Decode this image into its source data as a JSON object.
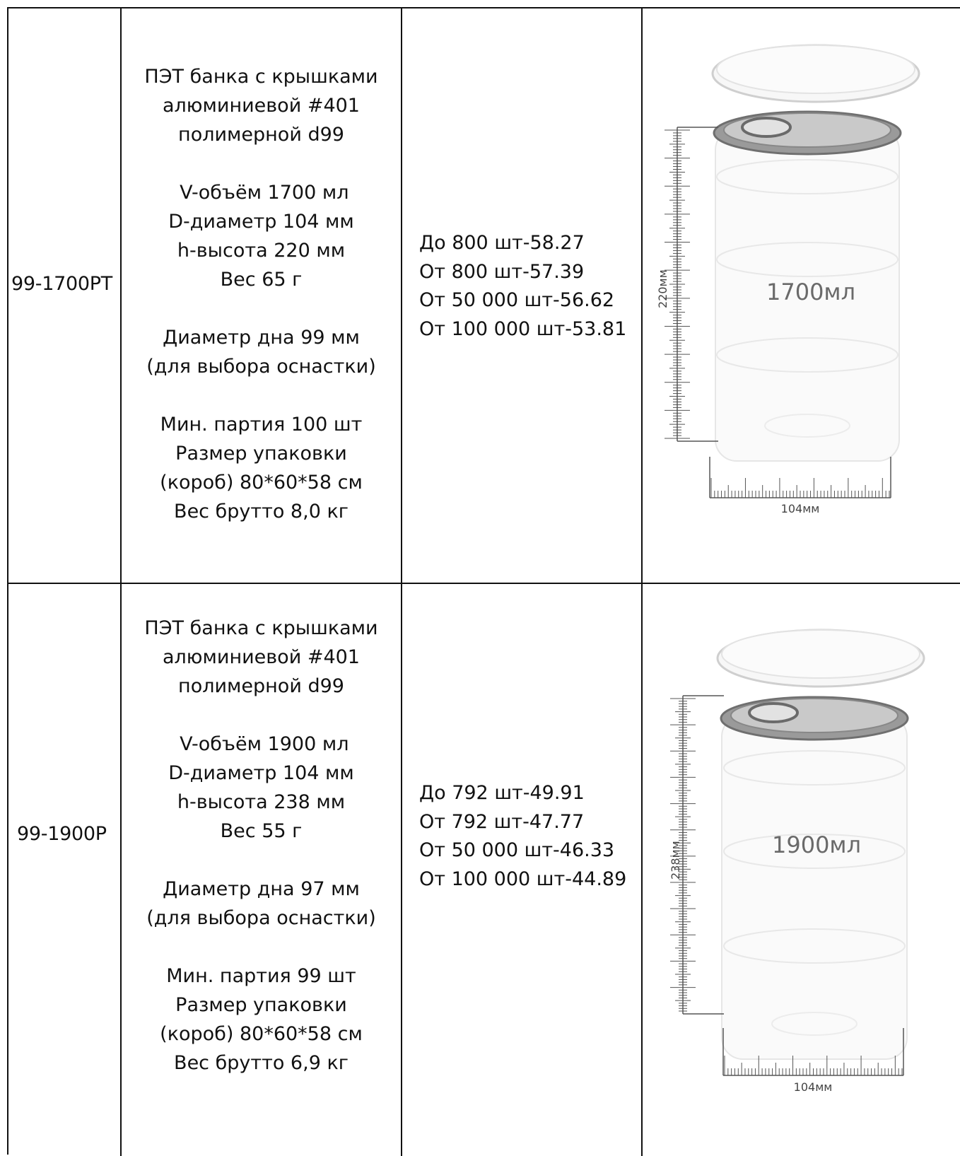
{
  "rows": [
    {
      "code": "99-1700PT",
      "description": "ПЭТ банка с крышками\nалюминиевой #401\nполимерной d99\n\n V-объём 1700 мл\nD-диаметр 104 мм\nh-высота 220 мм\nВес 65 г\n\nДиаметр дна 99 мм\n(для выбора оснастки)\n\nМин. партия 100 шт\nРазмер упаковки\n(короб) 80*60*58 см\nВес брутто 8,0 кг",
      "prices": [
        "До 800 шт-58.27",
        "От 800 шт-57.39",
        "От 50 000 шт-56.62",
        "От 100 000 шт-53.81"
      ],
      "image": {
        "volume_label": "1700мл",
        "height_label": "220мм",
        "width_label": "104мм"
      }
    },
    {
      "code": "99-1900P",
      "description": "ПЭТ банка с крышками\nалюминиевой #401\nполимерной d99\n\n V-объём 1900 мл\nD-диаметр 104 мм\nh-высота 238 мм\nВес 55 г\n\nДиаметр дна 97 мм\n(для выбора оснастки)\n\nМин. партия 99 шт\nРазмер упаковки\n(короб) 80*60*58 см\nВес брутто 6,9 кг",
      "prices": [
        "До 792 шт-49.91",
        "От 792 шт-47.77",
        "От 50 000 шт-46.33",
        "От 100 000 шт-44.89"
      ],
      "image": {
        "volume_label": "1900мл",
        "height_label": "238мм",
        "width_label": "104мм"
      }
    }
  ]
}
